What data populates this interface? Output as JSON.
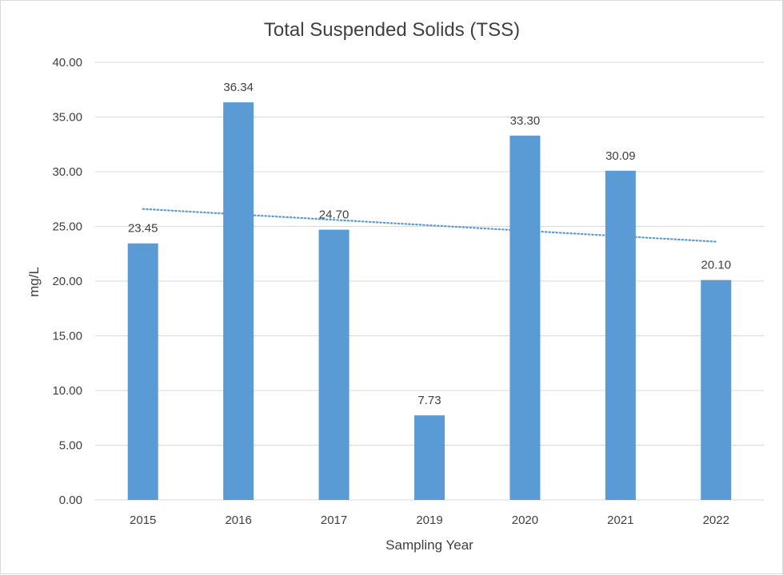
{
  "chart_data": {
    "type": "bar",
    "title": "Total Suspended Solids (TSS)",
    "xlabel": "Sampling Year",
    "ylabel": "mg/L",
    "categories": [
      "2015",
      "2016",
      "2017",
      "2019",
      "2020",
      "2021",
      "2022"
    ],
    "values": [
      23.45,
      36.34,
      24.7,
      7.73,
      33.3,
      30.09,
      20.1
    ],
    "value_labels": [
      "23.45",
      "36.34",
      "24.70",
      "7.73",
      "33.30",
      "30.09",
      "20.10"
    ],
    "ylim": [
      0,
      40
    ],
    "yticks": [
      "0.00",
      "5.00",
      "10.00",
      "15.00",
      "20.00",
      "25.00",
      "30.00",
      "35.00",
      "40.00"
    ],
    "grid": "horizontal",
    "legend": "none",
    "trendline": {
      "type": "linear",
      "style": "dotted"
    },
    "colors": {
      "bar": "#5b9bd5",
      "trendline": "#5b9bd5",
      "grid": "#d9d9d9",
      "text": "#404040"
    }
  }
}
